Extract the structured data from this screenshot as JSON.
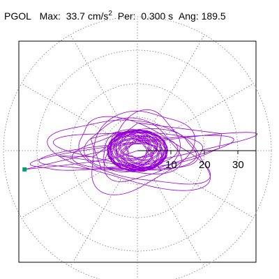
{
  "header": {
    "station": "PGOL",
    "max_label": "Max:",
    "max_value": "33.7",
    "max_unit": "cm/s",
    "max_exp": "2",
    "per_label": "Per:",
    "per_value": "0.300 s",
    "ang_label": "Ang:",
    "ang_value": "189.5"
  },
  "chart_data": {
    "type": "polar-particle-motion",
    "radial_ticks": [
      10,
      20,
      30
    ],
    "radial_max": 40,
    "spoke_angles_deg": [
      0,
      30,
      60,
      90,
      120,
      150,
      180,
      210,
      240,
      270,
      300,
      330
    ],
    "max_amplitude": 33.7,
    "orientation_deg": 189.5,
    "trace_color": "#9400D3",
    "marker_color": "#009E73",
    "grid_color": "#777777",
    "loops": [
      {
        "a": 6,
        "b": 4,
        "rot": 10,
        "n": 3
      },
      {
        "a": 8,
        "b": 5,
        "rot": -20,
        "n": 2
      },
      {
        "a": 11,
        "b": 6,
        "rot": 5,
        "n": 2
      },
      {
        "a": 14,
        "b": 8,
        "rot": -8,
        "n": 2
      },
      {
        "a": 18,
        "b": 6,
        "rot": 3,
        "n": 1
      },
      {
        "a": 22,
        "b": 5,
        "rot": -4,
        "n": 1
      },
      {
        "a": 28,
        "b": 4,
        "rot": 6,
        "n": 1
      },
      {
        "a": 33,
        "b": 3,
        "rot": 8,
        "n": 1
      },
      {
        "a": 20,
        "b": 8,
        "rot": -18,
        "n": 1
      },
      {
        "a": 16,
        "b": 11,
        "rot": 25,
        "n": 1
      },
      {
        "a": 24,
        "b": 9,
        "rot": -12,
        "n": 1
      },
      {
        "a": 12,
        "b": 9,
        "rot": 40,
        "n": 1
      }
    ],
    "tail": [
      {
        "x": -33.7,
        "y": -5.6
      },
      {
        "x": -24,
        "y": -4.6
      },
      {
        "x": -14,
        "y": -3.4
      },
      {
        "x": -6,
        "y": -2.0
      },
      {
        "x": 0,
        "y": 0
      }
    ]
  }
}
